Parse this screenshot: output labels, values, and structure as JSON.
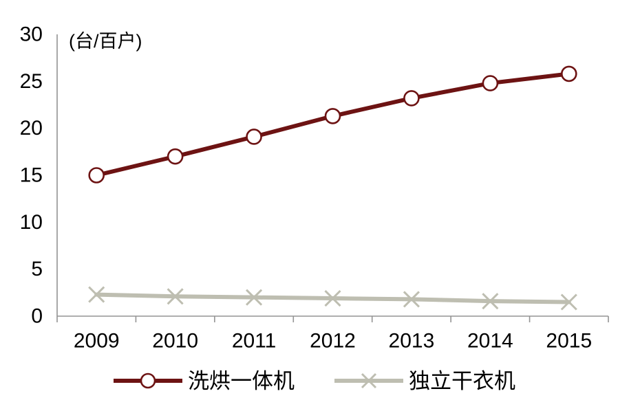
{
  "chart_data": {
    "type": "line",
    "title": "",
    "unit_label": "(台/百户)",
    "xlabel": "",
    "ylabel": "",
    "categories": [
      "2009",
      "2010",
      "2011",
      "2012",
      "2013",
      "2014",
      "2015"
    ],
    "series": [
      {
        "name": "洗烘一体机",
        "marker": "circle",
        "color": "#6D1313",
        "values": [
          15.0,
          17.0,
          19.1,
          21.3,
          23.2,
          24.8,
          25.8
        ]
      },
      {
        "name": "独立干衣机",
        "marker": "x",
        "color": "#BEBEB1",
        "values": [
          2.3,
          2.1,
          2.0,
          1.9,
          1.8,
          1.6,
          1.5
        ]
      }
    ],
    "ylim": [
      0,
      30
    ],
    "yticks": [
      0,
      5,
      10,
      15,
      20,
      25,
      30
    ],
    "grid": false,
    "legend_position": "bottom",
    "axis_color": "#939393",
    "text_color": "#000000"
  }
}
